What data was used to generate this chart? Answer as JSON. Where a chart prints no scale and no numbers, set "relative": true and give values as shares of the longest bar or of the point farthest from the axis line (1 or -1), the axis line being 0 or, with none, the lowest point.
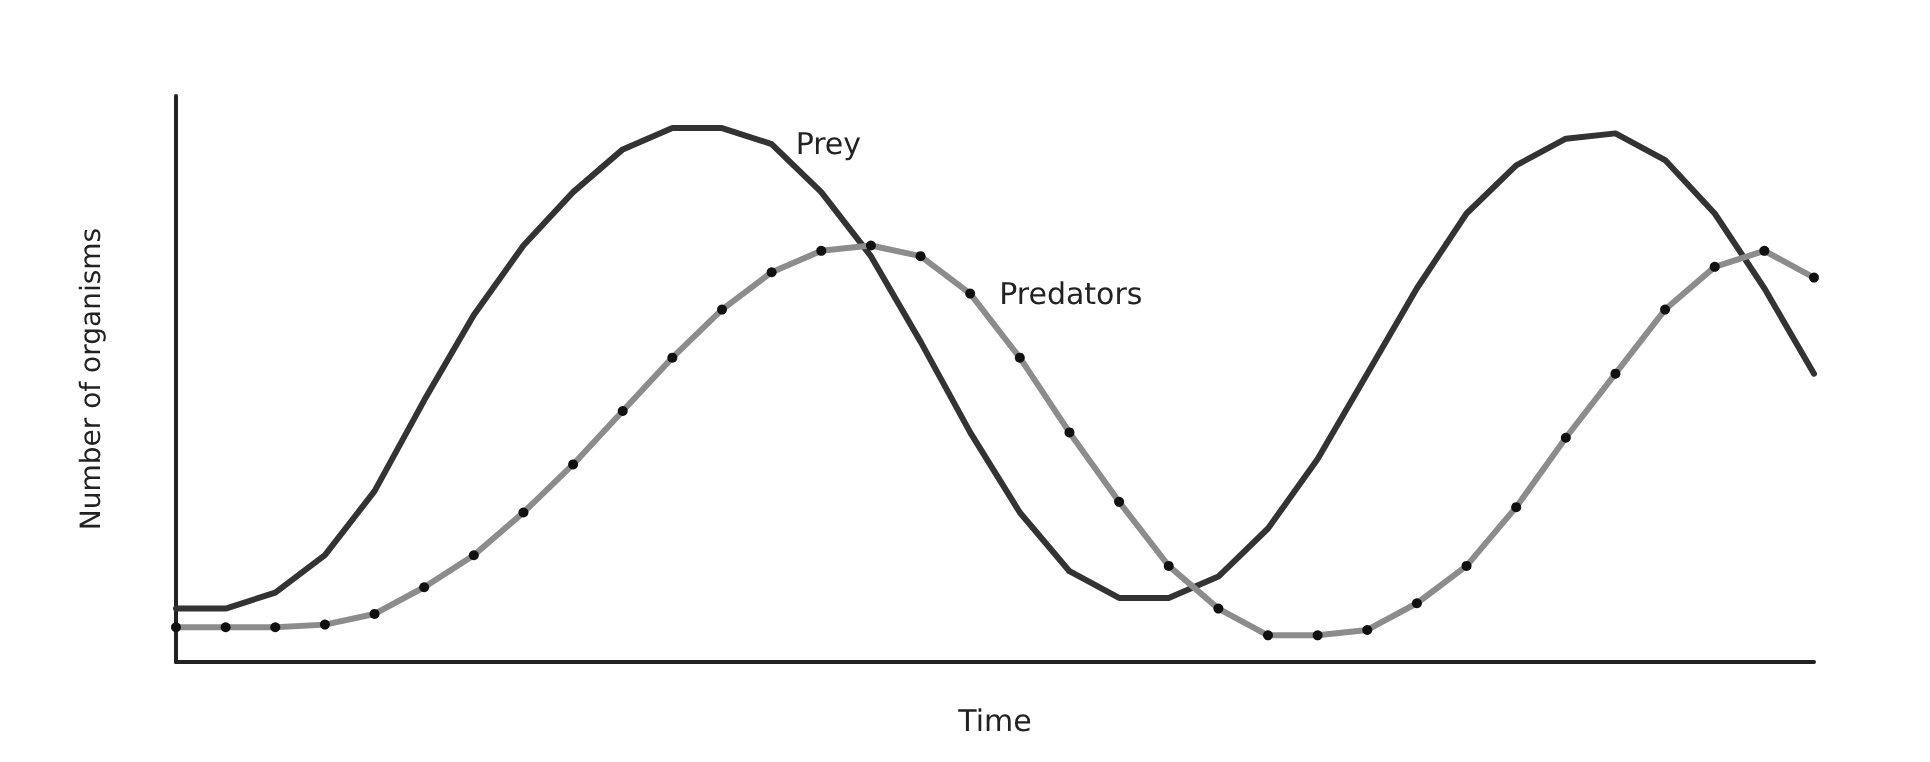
{
  "chart_data": {
    "type": "line",
    "relative": true,
    "xlabel": "Time",
    "ylabel": "Number of organisms",
    "grid": false,
    "categories": [
      null,
      null,
      null,
      null,
      null,
      null,
      null,
      null,
      null,
      null,
      null,
      null,
      null,
      null,
      null,
      null,
      null,
      null,
      null,
      null,
      null,
      null,
      null,
      null,
      null,
      null,
      null,
      null,
      null,
      null,
      null,
      null,
      null,
      null
    ],
    "series": [
      {
        "name": "Prey",
        "color": "#333333",
        "marker": "none",
        "values": [
          0.1,
          0.1,
          0.13,
          0.2,
          0.32,
          0.49,
          0.65,
          0.78,
          0.88,
          0.96,
          1.0,
          1.0,
          0.97,
          0.88,
          0.76,
          0.6,
          0.43,
          0.28,
          0.17,
          0.12,
          0.12,
          0.16,
          0.25,
          0.38,
          0.54,
          0.7,
          0.84,
          0.93,
          0.98,
          0.99,
          0.94,
          0.84,
          0.7,
          0.54
        ]
      },
      {
        "name": "Predators",
        "color": "#8c8c8c",
        "marker": "circle",
        "values": [
          0.065,
          0.065,
          0.065,
          0.07,
          0.09,
          0.14,
          0.2,
          0.28,
          0.37,
          0.47,
          0.57,
          0.66,
          0.73,
          0.77,
          0.78,
          0.76,
          0.69,
          0.57,
          0.43,
          0.3,
          0.18,
          0.1,
          0.05,
          0.05,
          0.06,
          0.11,
          0.18,
          0.29,
          0.42,
          0.54,
          0.66,
          0.74,
          0.77,
          0.72
        ]
      }
    ]
  }
}
